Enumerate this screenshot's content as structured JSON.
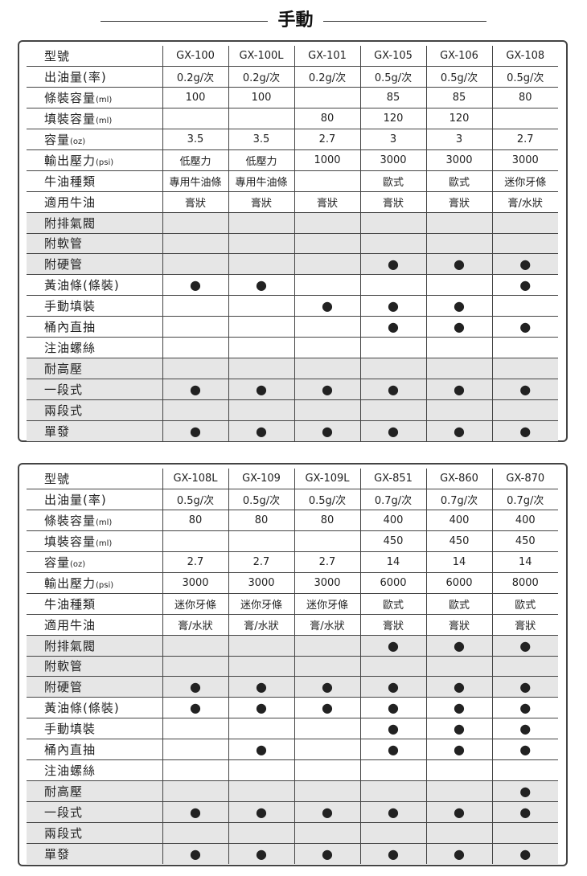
{
  "section_title": "手動",
  "tables": [
    {
      "rows": [
        {
          "label": "型號",
          "unit": "",
          "shade": false,
          "values": [
            "GX-100",
            "GX-100L",
            "GX-101",
            "GX-105",
            "GX-106",
            "GX-108"
          ]
        },
        {
          "label": "出油量(率)",
          "unit": "",
          "shade": false,
          "values": [
            "0.2g/次",
            "0.2g/次",
            "0.2g/次",
            "0.5g/次",
            "0.5g/次",
            "0.5g/次"
          ]
        },
        {
          "label": "條裝容量",
          "unit": "(ml)",
          "shade": false,
          "values": [
            "100",
            "100",
            "",
            "85",
            "85",
            "80"
          ]
        },
        {
          "label": "填裝容量",
          "unit": "(ml)",
          "shade": false,
          "values": [
            "",
            "",
            "80",
            "120",
            "120",
            ""
          ]
        },
        {
          "label": "容量",
          "unit": "(oz)",
          "shade": false,
          "values": [
            "3.5",
            "3.5",
            "2.7",
            "3",
            "3",
            "2.7"
          ]
        },
        {
          "label": "輸出壓力",
          "unit": "(psi)",
          "shade": false,
          "values": [
            "低壓力",
            "低壓力",
            "1000",
            "3000",
            "3000",
            "3000"
          ]
        },
        {
          "label": "牛油種類",
          "unit": "",
          "shade": false,
          "values": [
            "專用牛油條",
            "專用牛油條",
            "",
            "歐式",
            "歐式",
            "迷你牙條"
          ]
        },
        {
          "label": "適用牛油",
          "unit": "",
          "shade": false,
          "values": [
            "膏狀",
            "膏狀",
            "膏狀",
            "膏狀",
            "膏狀",
            "膏/水狀"
          ]
        },
        {
          "label": "附排氣閥",
          "unit": "",
          "shade": true,
          "values": [
            "",
            "",
            "",
            "",
            "",
            ""
          ]
        },
        {
          "label": "附軟管",
          "unit": "",
          "shade": true,
          "values": [
            "",
            "",
            "",
            "",
            "",
            ""
          ]
        },
        {
          "label": "附硬管",
          "unit": "",
          "shade": true,
          "values": [
            "",
            "",
            "",
            "●",
            "●",
            "●"
          ]
        },
        {
          "label": "黃油條(條裝)",
          "unit": "",
          "shade": false,
          "values": [
            "●",
            "●",
            "",
            "",
            "",
            "●"
          ]
        },
        {
          "label": "手動填裝",
          "unit": "",
          "shade": false,
          "values": [
            "",
            "",
            "●",
            "●",
            "●",
            ""
          ]
        },
        {
          "label": "桶內直抽",
          "unit": "",
          "shade": false,
          "values": [
            "",
            "",
            "",
            "●",
            "●",
            "●"
          ]
        },
        {
          "label": "注油螺絲",
          "unit": "",
          "shade": false,
          "values": [
            "",
            "",
            "",
            "",
            "",
            ""
          ]
        },
        {
          "label": "耐高壓",
          "unit": "",
          "shade": true,
          "values": [
            "",
            "",
            "",
            "",
            "",
            ""
          ]
        },
        {
          "label": "一段式",
          "unit": "",
          "shade": true,
          "values": [
            "●",
            "●",
            "●",
            "●",
            "●",
            "●"
          ]
        },
        {
          "label": "兩段式",
          "unit": "",
          "shade": true,
          "values": [
            "",
            "",
            "",
            "",
            "",
            ""
          ]
        },
        {
          "label": "單發",
          "unit": "",
          "shade": true,
          "values": [
            "●",
            "●",
            "●",
            "●",
            "●",
            "●"
          ]
        }
      ]
    },
    {
      "rows": [
        {
          "label": "型號",
          "unit": "",
          "shade": false,
          "values": [
            "GX-108L",
            "GX-109",
            "GX-109L",
            "GX-851",
            "GX-860",
            "GX-870"
          ]
        },
        {
          "label": "出油量(率)",
          "unit": "",
          "shade": false,
          "values": [
            "0.5g/次",
            "0.5g/次",
            "0.5g/次",
            "0.7g/次",
            "0.7g/次",
            "0.7g/次"
          ]
        },
        {
          "label": "條裝容量",
          "unit": "(ml)",
          "shade": false,
          "values": [
            "80",
            "80",
            "80",
            "400",
            "400",
            "400"
          ]
        },
        {
          "label": "填裝容量",
          "unit": "(ml)",
          "shade": false,
          "values": [
            "",
            "",
            "",
            "450",
            "450",
            "450"
          ]
        },
        {
          "label": "容量",
          "unit": "(oz)",
          "shade": false,
          "values": [
            "2.7",
            "2.7",
            "2.7",
            "14",
            "14",
            "14"
          ]
        },
        {
          "label": "輸出壓力",
          "unit": "(psi)",
          "shade": false,
          "values": [
            "3000",
            "3000",
            "3000",
            "6000",
            "6000",
            "8000"
          ]
        },
        {
          "label": "牛油種類",
          "unit": "",
          "shade": false,
          "values": [
            "迷你牙條",
            "迷你牙條",
            "迷你牙條",
            "歐式",
            "歐式",
            "歐式"
          ]
        },
        {
          "label": "適用牛油",
          "unit": "",
          "shade": false,
          "values": [
            "膏/水狀",
            "膏/水狀",
            "膏/水狀",
            "膏狀",
            "膏狀",
            "膏狀"
          ]
        },
        {
          "label": "附排氣閥",
          "unit": "",
          "shade": true,
          "values": [
            "",
            "",
            "",
            "●",
            "●",
            "●"
          ]
        },
        {
          "label": "附軟管",
          "unit": "",
          "shade": true,
          "values": [
            "",
            "",
            "",
            "",
            "",
            ""
          ]
        },
        {
          "label": "附硬管",
          "unit": "",
          "shade": true,
          "values": [
            "●",
            "●",
            "●",
            "●",
            "●",
            "●"
          ]
        },
        {
          "label": "黃油條(條裝)",
          "unit": "",
          "shade": false,
          "values": [
            "●",
            "●",
            "●",
            "●",
            "●",
            "●"
          ]
        },
        {
          "label": "手動填裝",
          "unit": "",
          "shade": false,
          "values": [
            "",
            "",
            "",
            "●",
            "●",
            "●"
          ]
        },
        {
          "label": "桶內直抽",
          "unit": "",
          "shade": false,
          "values": [
            "",
            "●",
            "",
            "●",
            "●",
            "●"
          ]
        },
        {
          "label": "注油螺絲",
          "unit": "",
          "shade": false,
          "values": [
            "",
            "",
            "",
            "",
            "",
            ""
          ]
        },
        {
          "label": "耐高壓",
          "unit": "",
          "shade": true,
          "values": [
            "",
            "",
            "",
            "",
            "",
            "●"
          ]
        },
        {
          "label": "一段式",
          "unit": "",
          "shade": true,
          "values": [
            "●",
            "●",
            "●",
            "●",
            "●",
            "●"
          ]
        },
        {
          "label": "兩段式",
          "unit": "",
          "shade": true,
          "values": [
            "",
            "",
            "",
            "",
            "",
            ""
          ]
        },
        {
          "label": "單發",
          "unit": "",
          "shade": true,
          "values": [
            "●",
            "●",
            "●",
            "●",
            "●",
            "●"
          ]
        }
      ]
    }
  ]
}
